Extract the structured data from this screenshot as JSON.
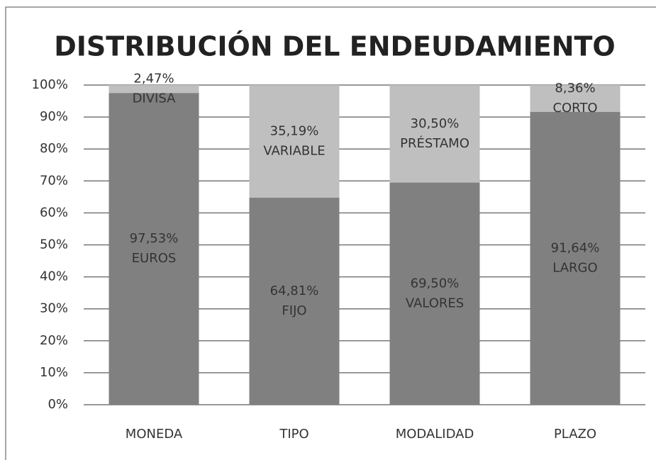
{
  "chart_data": {
    "type": "stacked_bar",
    "title": "DISTRIBUCIÓN DEL ENDEUDAMIENTO",
    "categories": [
      "MONEDA",
      "TIPO",
      "MODALIDAD",
      "PLAZO"
    ],
    "series": [
      {
        "color": "#808080",
        "values": [
          97.53,
          64.81,
          69.5,
          91.64
        ],
        "value_labels": [
          "97,53%",
          "64,81%",
          "69,50%",
          "91,64%"
        ],
        "labels": [
          "EUROS",
          "FIJO",
          "VALORES",
          "LARGO"
        ]
      },
      {
        "color": "#bfbfbf",
        "values": [
          2.47,
          35.19,
          30.5,
          8.36
        ],
        "value_labels": [
          "2,47%",
          "35,19%",
          "30,50%",
          "8,36%"
        ],
        "labels": [
          "DIVISA",
          "VARIABLE",
          "PRÉSTAMO",
          "CORTO"
        ]
      }
    ],
    "ylim": [
      0,
      100
    ],
    "yticks": [
      {
        "value": 0,
        "label": "0%"
      },
      {
        "value": 10,
        "label": "10%"
      },
      {
        "value": 20,
        "label": "20%"
      },
      {
        "value": 30,
        "label": "30%"
      },
      {
        "value": 40,
        "label": "40%"
      },
      {
        "value": 50,
        "label": "50%"
      },
      {
        "value": 60,
        "label": "60%"
      },
      {
        "value": 70,
        "label": "70%"
      },
      {
        "value": 80,
        "label": "80%"
      },
      {
        "value": 90,
        "label": "90%"
      },
      {
        "value": 100,
        "label": "100%"
      }
    ],
    "grid": true
  }
}
